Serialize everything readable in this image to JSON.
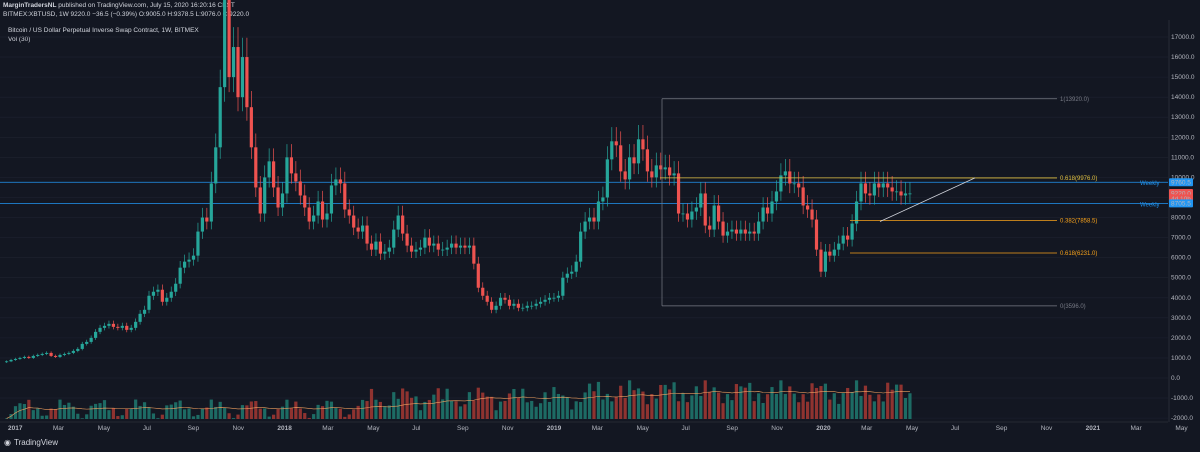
{
  "header": {
    "publisher": "MarginTradersNL",
    "published_text": "published on TradingView.com, July 15, 2020 16:20:16 CEST",
    "symbol_line": "BITMEX:XBTUSD, 1W  9220.0  −36.5 (−0.39%)  O:9005.0  H:9378.5  L:9076.0  C:9220.0",
    "title": "Bitcoin / US Dollar Perpetual Inverse Swap Contract, 1W, BITMEX",
    "volume_label": "Vol (30)"
  },
  "footer": {
    "brand": "TradingView"
  },
  "colors": {
    "up": "#26a69a",
    "down": "#ef5350",
    "bg": "#131722",
    "fib": "#c9a227",
    "fib_orange": "#f7a21b",
    "hline": "#2196f3"
  },
  "chart_data": {
    "type": "candlestick",
    "price_axis": {
      "ticks": [
        17000,
        16000,
        15000,
        14000,
        13000,
        12000,
        11000,
        10000,
        9000,
        8000,
        7000,
        6000,
        5000,
        4000,
        3000,
        2000,
        1000,
        0,
        -1000,
        -2000
      ],
      "tick_labels": [
        "17000.0",
        "16000.0",
        "15000.0",
        "14000.0",
        "13000.0",
        "12000.0",
        "11000.0",
        "10000.0",
        "9000.0",
        "8000.0",
        "7000.0",
        "6000.0",
        "5000.0",
        "4000.0",
        "3000.0",
        "2000.0",
        "1000.0",
        "0.0",
        "-1000.0",
        "-2000.0"
      ]
    },
    "time_axis": [
      "2017",
      "Mar",
      "May",
      "Jul",
      "Sep",
      "Nov",
      "2018",
      "Mar",
      "May",
      "Jul",
      "Sep",
      "Nov",
      "2019",
      "Mar",
      "May",
      "Jul",
      "Sep",
      "Nov",
      "2020",
      "Mar",
      "May",
      "Jul",
      "Sep",
      "Nov",
      "2021",
      "Mar",
      "May"
    ],
    "price_badges": [
      {
        "label": "9760.5",
        "value": 9760.5,
        "color": "#2196f3"
      },
      {
        "label": "9220.0",
        "value": 9220.0,
        "color": "#ef5350"
      },
      {
        "label": "4d 10h",
        "value": 8950,
        "color": "#ef5350"
      },
      {
        "label": "8705.5",
        "value": 8705.5,
        "color": "#2196f3"
      }
    ],
    "horizontal_levels": [
      {
        "label": "Weekly",
        "value": 9760.5
      },
      {
        "label": "Weekly",
        "value": 8705.5
      }
    ],
    "fibonacci": [
      {
        "label": "1(13920.0)",
        "value": 13920.0
      },
      {
        "label": "0.618(9976.0)",
        "value": 9976.0
      },
      {
        "label": "0.382(7858.5)",
        "value": 7858.5
      },
      {
        "label": "0.618(6231.0)",
        "value": 6231.0
      },
      {
        "label": "0(3596.0)",
        "value": 3596.0
      }
    ],
    "weekly_close": [
      830,
      900,
      950,
      1000,
      1050,
      1000,
      1100,
      1150,
      1200,
      1250,
      1100,
      1050,
      1150,
      1200,
      1250,
      1350,
      1450,
      1700,
      1800,
      2000,
      2300,
      2500,
      2600,
      2700,
      2550,
      2500,
      2600,
      2400,
      2500,
      2800,
      3200,
      3400,
      4100,
      4300,
      4400,
      3800,
      4000,
      4300,
      4700,
      5500,
      5800,
      5900,
      6100,
      7300,
      8000,
      7800,
      9700,
      11500,
      14500,
      19000,
      15000,
      16500,
      14000,
      16000,
      13500,
      11500,
      9500,
      8200,
      10000,
      10800,
      9500,
      8500,
      9200,
      11000,
      10200,
      9800,
      9100,
      8500,
      7800,
      8100,
      8800,
      7900,
      8200,
      9600,
      9900,
      9700,
      8400,
      8100,
      7500,
      7300,
      7600,
      6700,
      6400,
      6800,
      6200,
      6300,
      6500,
      7400,
      8100,
      7200,
      6600,
      6300,
      6400,
      6500,
      7000,
      6600,
      6700,
      6400,
      6400,
      6500,
      6700,
      6500,
      6600,
      6500,
      6600,
      5700,
      4500,
      4100,
      3800,
      3400,
      3600,
      4000,
      3900,
      3600,
      3700,
      3500,
      3500,
      3600,
      3600,
      3700,
      3800,
      3900,
      4000,
      4000,
      4100,
      5000,
      5200,
      5300,
      5800,
      7300,
      7800,
      8000,
      7800,
      8800,
      9000,
      10900,
      11800,
      11600,
      10300,
      9900,
      11000,
      10700,
      11900,
      11400,
      10300,
      10000,
      10600,
      10400,
      10500,
      10100,
      10200,
      8200,
      8200,
      7900,
      8300,
      8500,
      9200,
      7600,
      7400,
      8600,
      7800,
      7100,
      7300,
      7400,
      7200,
      7400,
      7200,
      7300,
      7200,
      7800,
      8500,
      8200,
      8800,
      9300,
      10100,
      10300,
      9700,
      9700,
      9500,
      8600,
      8400,
      7900,
      6400,
      5300,
      6300,
      6100,
      6400,
      6700,
      7100,
      6900,
      7700,
      8800,
      9700,
      9200,
      9100,
      9700,
      9500,
      9700,
      9500,
      9300,
      9300,
      9100,
      9200,
      9200
    ],
    "volume_note": "relative bar volumes with 30-period moving average"
  }
}
